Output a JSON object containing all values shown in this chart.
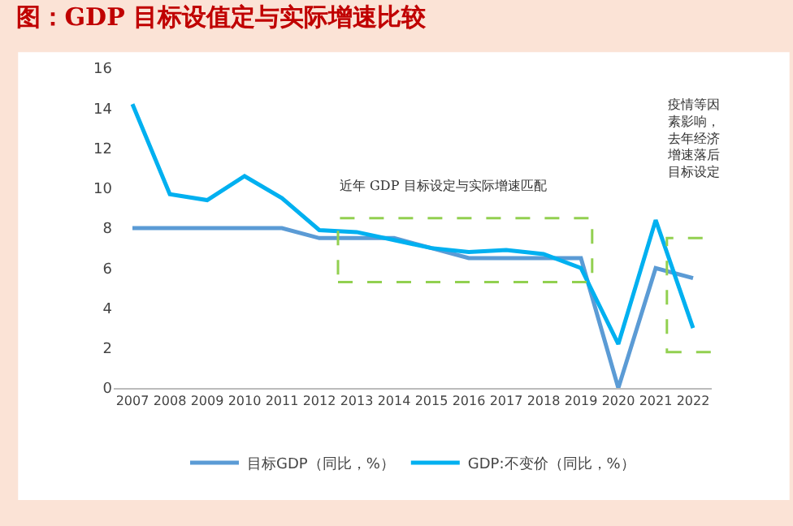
{
  "chart_data": {
    "type": "line",
    "title": "图：GDP 目标设值定与实际增速比较",
    "categories": [
      "2007",
      "2008",
      "2009",
      "2010",
      "2011",
      "2012",
      "2013",
      "2014",
      "2015",
      "2016",
      "2017",
      "2018",
      "2019",
      "2020",
      "2021",
      "2022"
    ],
    "series": [
      {
        "name": "目标GDP（同比，%）",
        "color": "#5b9bd5",
        "values": [
          8,
          8,
          8,
          8,
          8,
          7.5,
          7.5,
          7.5,
          7,
          6.5,
          6.5,
          6.5,
          6.5,
          0,
          6,
          5.5
        ]
      },
      {
        "name": "GDP:不变价（同比，%）",
        "color": "#00b0f0",
        "values": [
          14.2,
          9.7,
          9.4,
          10.6,
          9.5,
          7.9,
          7.8,
          7.4,
          7.0,
          6.8,
          6.9,
          6.7,
          6.0,
          2.2,
          8.4,
          3.0
        ]
      }
    ],
    "ylim": [
      0,
      16
    ],
    "yticks": [
      0,
      2,
      4,
      6,
      8,
      10,
      12,
      14,
      16
    ],
    "legend": "bottom",
    "marker": "none",
    "line_style": "solid",
    "annotations": [
      "近年 GDP 目标设定与实际增速匹配",
      "疫情等因素影响，去年经济增速落后目标设定"
    ]
  }
}
